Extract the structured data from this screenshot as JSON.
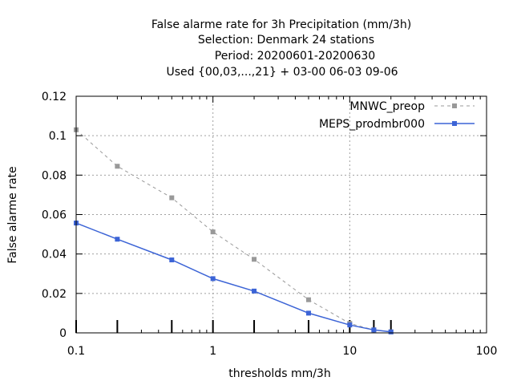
{
  "chart_data": {
    "type": "line",
    "title_lines": [
      "False alarme rate  for 3h Precipitation (mm/3h)",
      "Selection: Denmark     24 stations",
      "Period: 20200601-20200630",
      "Used {00,03,...,21} + 03-00 06-03 09-06"
    ],
    "xlabel": "thresholds mm/3h",
    "ylabel": "False alarme rate",
    "x_scale": "log",
    "xlim": [
      0.1,
      100
    ],
    "ylim": [
      0,
      0.12
    ],
    "x_ticks": [
      0.1,
      1,
      10,
      100
    ],
    "x_tick_labels": [
      "0.1",
      "1",
      "10",
      "100"
    ],
    "y_ticks": [
      0,
      0.02,
      0.04,
      0.06,
      0.08,
      0.1,
      0.12
    ],
    "y_tick_labels": [
      "0",
      "0.02",
      "0.04",
      "0.06",
      "0.08",
      "0.1",
      "0.12"
    ],
    "grid": true,
    "legend_position": "top-right",
    "x": [
      0.1,
      0.2,
      0.5,
      1,
      2,
      5,
      10,
      15,
      20
    ],
    "series": [
      {
        "name": "MNWC_preop",
        "color": "#999999",
        "line_style": "dashed",
        "values": [
          0.103,
          0.0845,
          0.0685,
          0.0512,
          0.0373,
          0.0168,
          0.0048,
          0.0015,
          0.0005
        ]
      },
      {
        "name": "MEPS_prodmbr000",
        "color": "#3c64d6",
        "line_style": "solid",
        "values": [
          0.0557,
          0.0475,
          0.037,
          0.0275,
          0.0212,
          0.01,
          0.004,
          0.0015,
          0.0005
        ]
      }
    ],
    "rug_x": [
      0.1,
      0.2,
      0.5,
      1,
      2,
      5,
      10,
      15,
      20
    ]
  }
}
